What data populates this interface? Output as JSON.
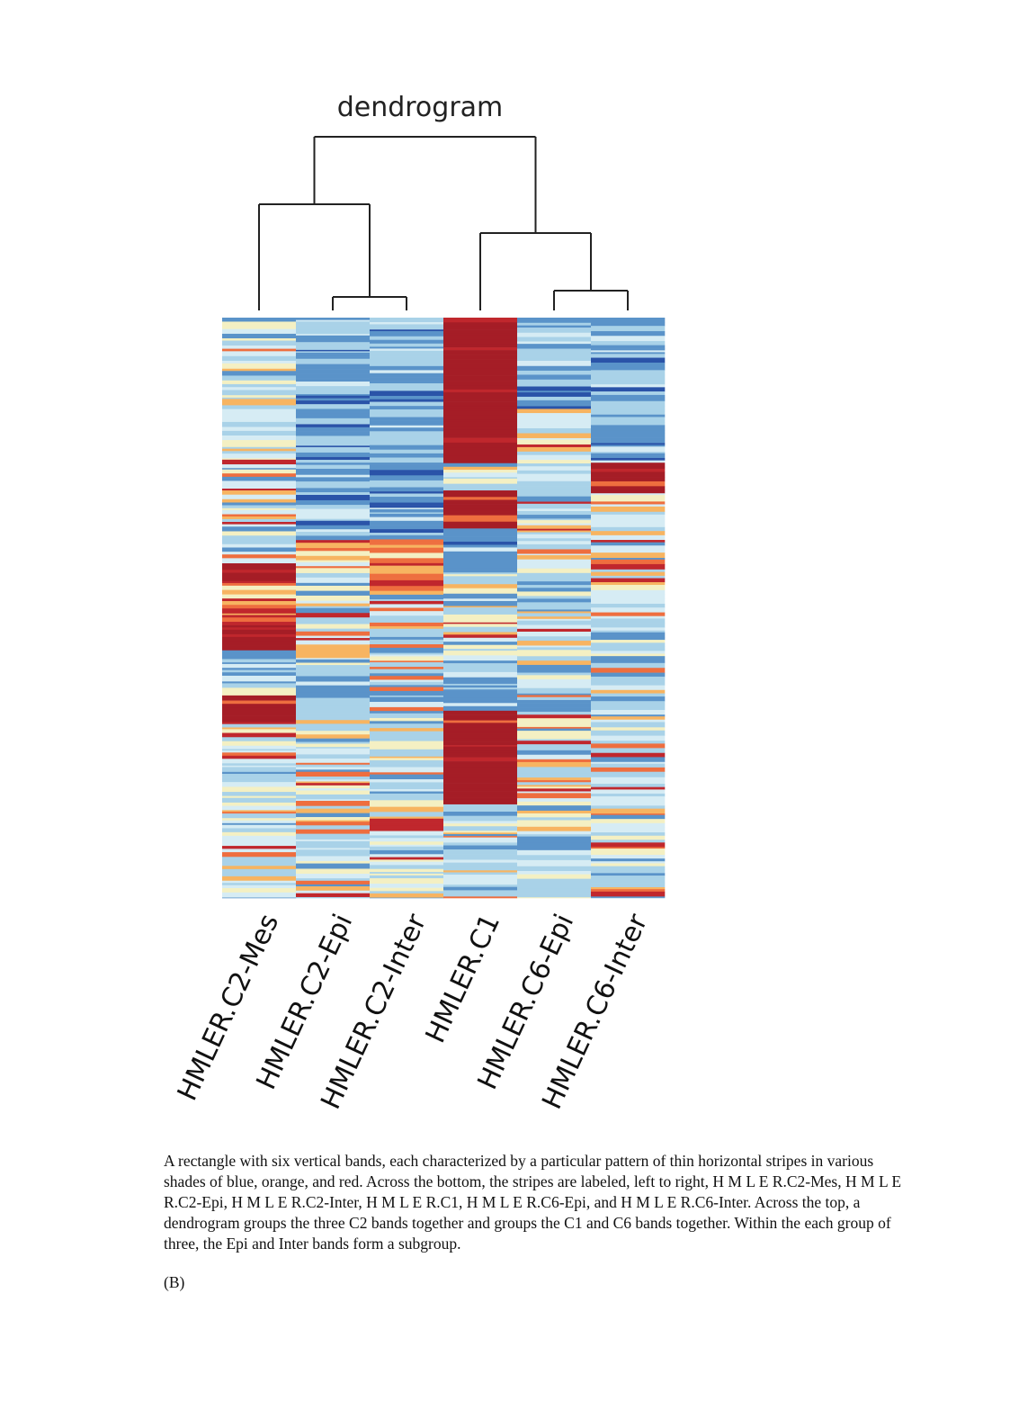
{
  "chart_data": {
    "type": "heatmap",
    "title": "dendrogram",
    "columns": [
      "HMLER.C2-Mes",
      "HMLER.C2-Epi",
      "HMLER.C2-Inter",
      "HMLER.C1",
      "HMLER.C6-Epi",
      "HMLER.C6-Inter"
    ],
    "color_scale": [
      "#2a53a8",
      "#5a93c9",
      "#a9d2e8",
      "#d6ecf4",
      "#f4f0c3",
      "#f7b461",
      "#ee6e3f",
      "#c0272d",
      "#a51d26"
    ],
    "dendrogram": {
      "clusters": [
        {
          "members": [
            "HMLER.C2-Mes",
            "HMLER.C2-Epi",
            "HMLER.C2-Inter"
          ],
          "subgroup": [
            "HMLER.C2-Epi",
            "HMLER.C2-Inter"
          ]
        },
        {
          "members": [
            "HMLER.C1",
            "HMLER.C6-Epi",
            "HMLER.C6-Inter"
          ],
          "subgroup": [
            "HMLER.C6-Epi",
            "HMLER.C6-Inter"
          ]
        }
      ]
    },
    "row_blocks": {
      "HMLER.C2-Mes": [
        [
          0.0,
          0.42,
          "mixed"
        ],
        [
          0.42,
          0.46,
          "red"
        ],
        [
          0.46,
          0.52,
          "orange"
        ],
        [
          0.52,
          0.57,
          "red"
        ],
        [
          0.57,
          0.61,
          "blue"
        ],
        [
          0.61,
          0.65,
          "mixed"
        ],
        [
          0.65,
          0.7,
          "red"
        ],
        [
          0.7,
          1.0,
          "mixed"
        ]
      ],
      "HMLER.C2-Epi": [
        [
          0.0,
          0.38,
          "blue"
        ],
        [
          0.38,
          0.42,
          "orange"
        ],
        [
          0.42,
          1.0,
          "mixed"
        ]
      ],
      "HMLER.C2-Inter": [
        [
          0.0,
          0.38,
          "blue"
        ],
        [
          0.38,
          0.42,
          "orange"
        ],
        [
          0.42,
          0.48,
          "orange"
        ],
        [
          0.48,
          1.0,
          "mixed"
        ]
      ],
      "HMLER.C1": [
        [
          0.0,
          0.16,
          "red"
        ],
        [
          0.16,
          0.25,
          "red"
        ],
        [
          0.25,
          0.3,
          "mixed"
        ],
        [
          0.3,
          0.36,
          "red"
        ],
        [
          0.36,
          0.44,
          "blue"
        ],
        [
          0.44,
          0.59,
          "mixed"
        ],
        [
          0.59,
          0.68,
          "blue"
        ],
        [
          0.68,
          0.84,
          "red"
        ],
        [
          0.84,
          0.87,
          "blue"
        ],
        [
          0.87,
          1.0,
          "mixed"
        ]
      ],
      "HMLER.C6-Epi": [
        [
          0.0,
          0.16,
          "blue"
        ],
        [
          0.16,
          0.36,
          "mixed"
        ],
        [
          0.36,
          1.0,
          "mixed"
        ]
      ],
      "HMLER.C6-Inter": [
        [
          0.0,
          0.25,
          "blue"
        ],
        [
          0.25,
          0.3,
          "red"
        ],
        [
          0.3,
          1.0,
          "mixed"
        ]
      ]
    }
  },
  "caption": "A rectangle with six vertical bands, each characterized by a particular pattern of thin horizontal stripes in various shades of blue, orange, and red. Across the bottom, the stripes are labeled, left to right, H M L E R.C2-Mes, H M L E R.C2-Epi, H M L E R.C2-Inter, H M L E R.C1, H M L E R.C6-Epi, and H M L E R.C6-Inter. Across the top, a dendrogram groups the three C2 bands together and groups the C1 and C6 bands together. Within the each group of three, the Epi and Inter bands form a subgroup.",
  "panel_label": "(B)"
}
